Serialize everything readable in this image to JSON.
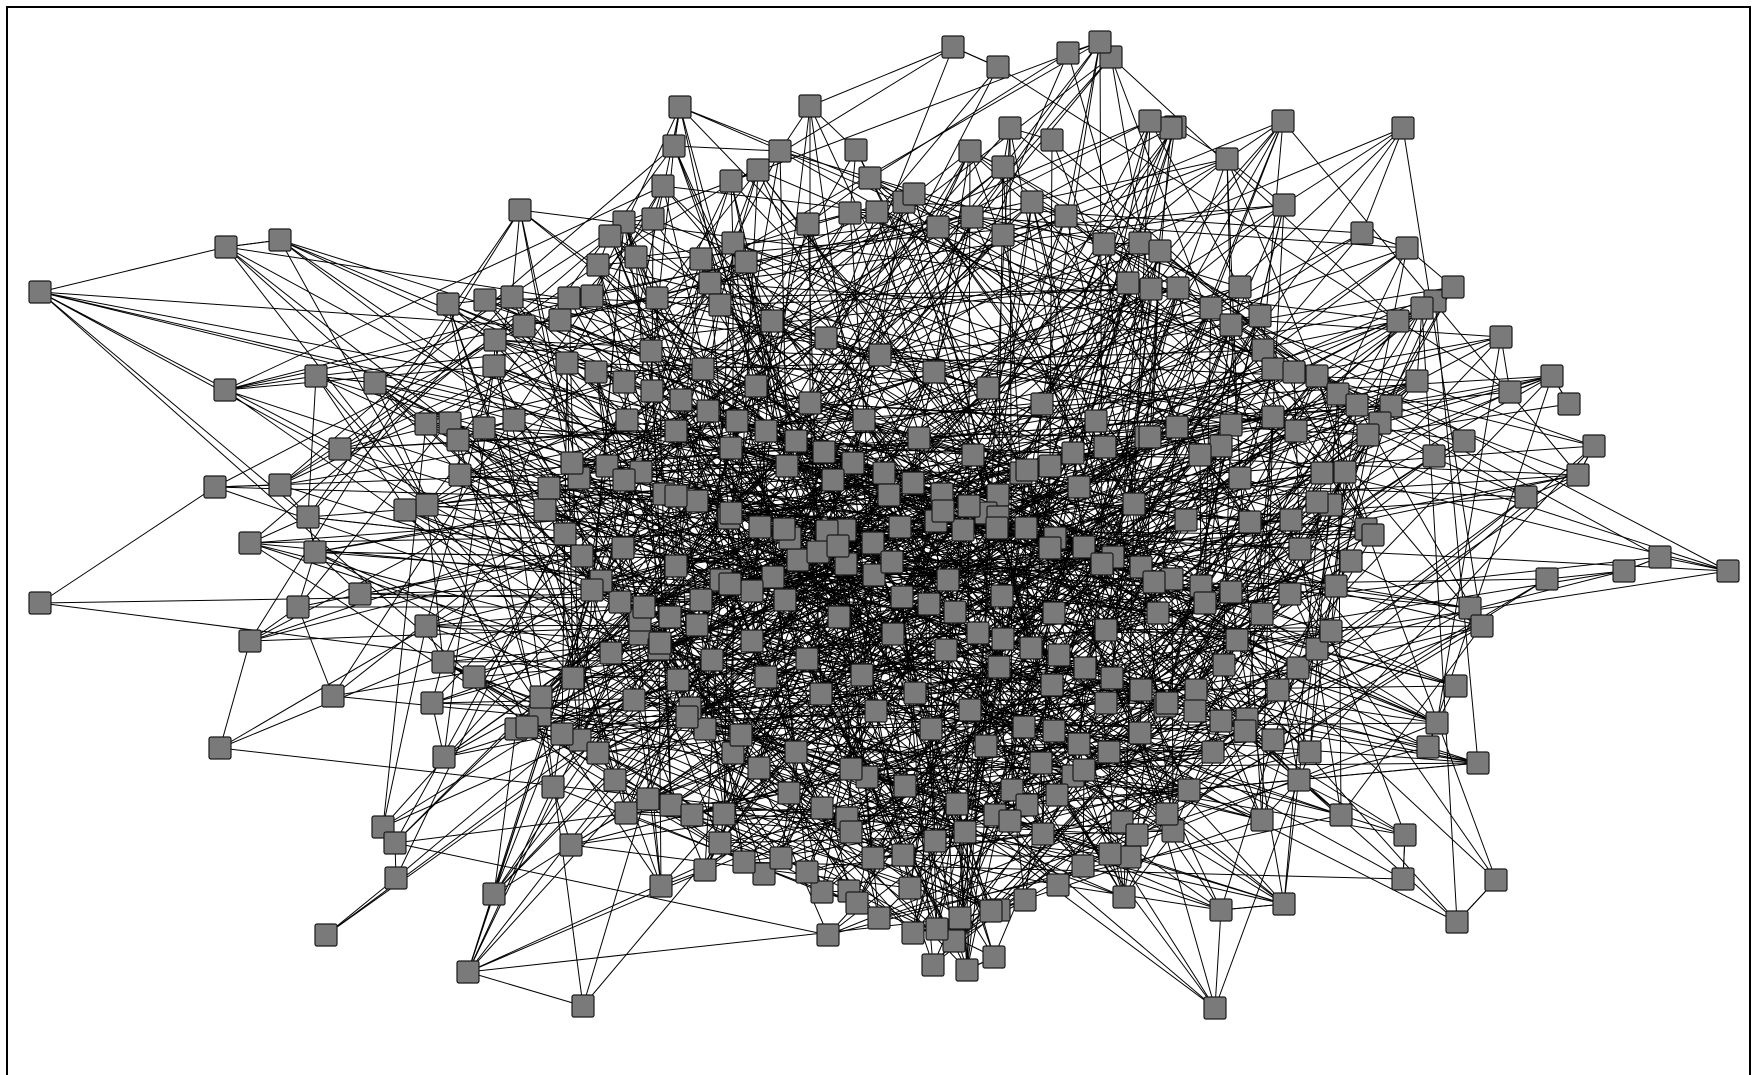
{
  "diagram": {
    "type": "network-graph",
    "node_shape": "square",
    "colors": {
      "node_fill": "#7a7a7a",
      "node_stroke": "#1a1a1a",
      "edge": "#000000",
      "background": "#ffffff",
      "frame": "#000000"
    }
  }
}
